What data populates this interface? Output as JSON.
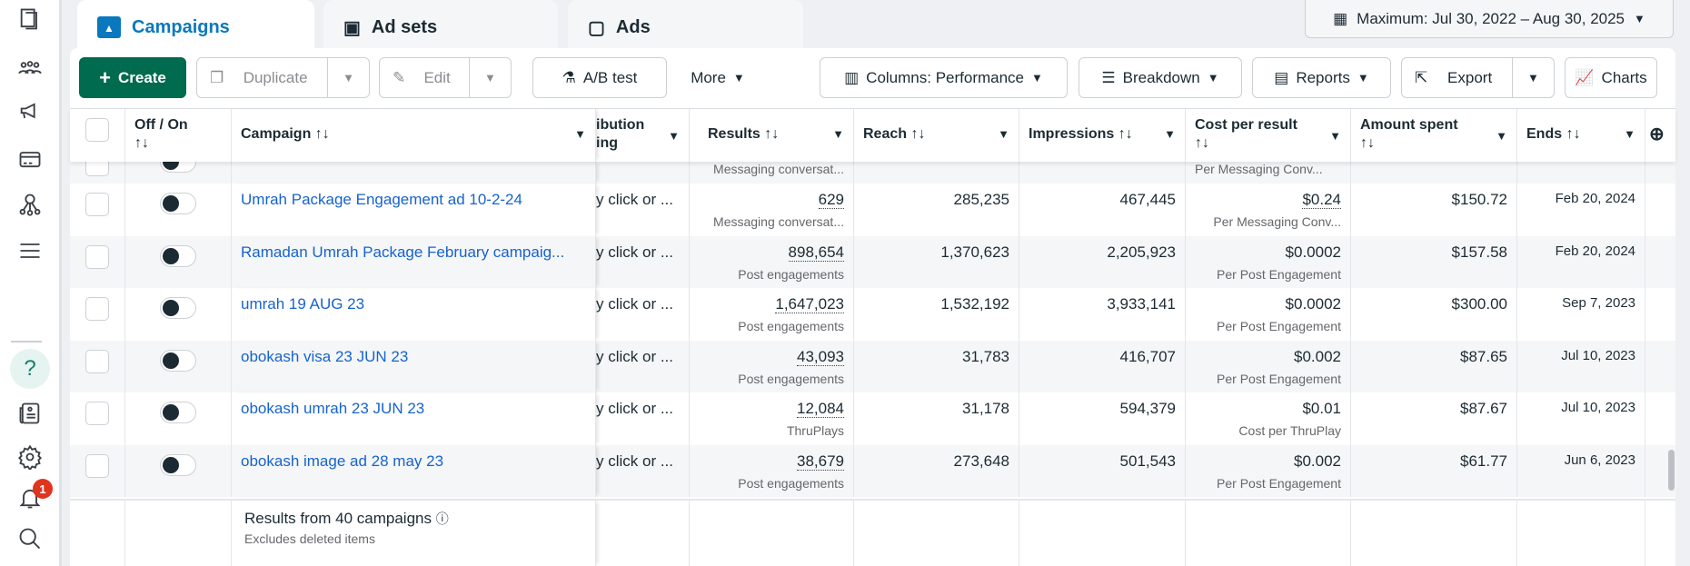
{
  "sidebar": {
    "items": [
      {
        "icon": "pages-icon"
      },
      {
        "icon": "audience-icon"
      },
      {
        "icon": "ads-manager-icon"
      },
      {
        "icon": "billing-icon"
      },
      {
        "icon": "business-graph-icon"
      },
      {
        "icon": "menu-icon"
      },
      {
        "icon": "help-icon"
      },
      {
        "icon": "news-icon"
      },
      {
        "icon": "settings-icon"
      },
      {
        "icon": "notifications-icon"
      },
      {
        "icon": "search-icon"
      }
    ],
    "notification_count": "1"
  },
  "tabs": [
    {
      "label": "Campaigns",
      "active": true
    },
    {
      "label": "Ad sets"
    },
    {
      "label": "Ads"
    }
  ],
  "date_range": "Maximum: Jul 30, 2022 – Aug 30, 2025",
  "toolbar": {
    "create": "Create",
    "duplicate": "Duplicate",
    "edit": "Edit",
    "ab_test": "A/B test",
    "more": "More",
    "columns": "Columns: Performance",
    "breakdown": "Breakdown",
    "reports": "Reports",
    "export": "Export",
    "charts": "Charts"
  },
  "columns": {
    "offon": "Off / On",
    "campaign": "Campaign",
    "attribution": "ibution\ning",
    "results": "Results",
    "reach": "Reach",
    "impressions": "Impressions",
    "cost": "Cost per result",
    "amount": "Amount spent",
    "ends": "Ends",
    "sort": "↑↓"
  },
  "partial_row": {
    "results_sub": "Messaging conversat...",
    "cost_sub": "Per Messaging Conv..."
  },
  "rows": [
    {
      "name": "Umrah Package Engagement ad 10-2-24",
      "attribution": "y click or ...",
      "results": "629",
      "results_sub": "Messaging conversat...",
      "reach": "285,235",
      "impressions": "467,445",
      "cost": "$0.24",
      "cost_sub": "Per Messaging Conv...",
      "amount": "$150.72",
      "ends": "Feb 20, 2024"
    },
    {
      "name": "Ramadan Umrah Package February campaig...",
      "attribution": "y click or ...",
      "results": "898,654",
      "results_sub": "Post engagements",
      "reach": "1,370,623",
      "impressions": "2,205,923",
      "cost": "$0.0002",
      "cost_sub": "Per Post Engagement",
      "amount": "$157.58",
      "ends": "Feb 20, 2024"
    },
    {
      "name": "umrah 19 AUG 23",
      "attribution": "y click or ...",
      "results": "1,647,023",
      "results_sub": "Post engagements",
      "reach": "1,532,192",
      "impressions": "3,933,141",
      "cost": "$0.0002",
      "cost_sub": "Per Post Engagement",
      "amount": "$300.00",
      "ends": "Sep 7, 2023"
    },
    {
      "name": "obokash visa 23 JUN 23",
      "attribution": "y click or ...",
      "results": "43,093",
      "results_sub": "Post engagements",
      "reach": "31,783",
      "impressions": "416,707",
      "cost": "$0.002",
      "cost_sub": "Per Post Engagement",
      "amount": "$87.65",
      "ends": "Jul 10, 2023"
    },
    {
      "name": "obokash umrah 23 JUN 23",
      "attribution": "y click or ...",
      "results": "12,084",
      "results_sub": "ThruPlays",
      "reach": "31,178",
      "impressions": "594,379",
      "cost": "$0.01",
      "cost_sub": "Cost per ThruPlay",
      "amount": "$87.67",
      "ends": "Jul 10, 2023"
    },
    {
      "name": "obokash image ad 28 may 23",
      "attribution": "y click or ...",
      "results": "38,679",
      "results_sub": "Post engagements",
      "reach": "273,648",
      "impressions": "501,543",
      "cost": "$0.002",
      "cost_sub": "Per Post Engagement",
      "amount": "$61.77",
      "ends": "Jun 6, 2023"
    }
  ],
  "footer": {
    "title": "Results from 40 campaigns",
    "subtitle": "Excludes deleted items"
  },
  "colors": {
    "accent": "#0a78be",
    "create": "#006b4e",
    "link": "#1763cf",
    "badge": "#e0341e"
  }
}
